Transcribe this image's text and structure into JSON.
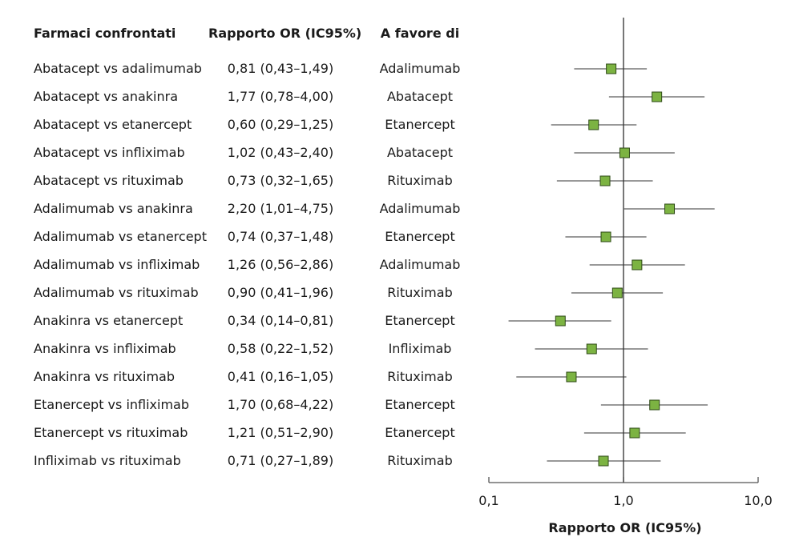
{
  "chart_data": {
    "type": "forest",
    "headers": {
      "comparison": "Farmaci confrontati",
      "ratio": "Rapporto OR (IC95%)",
      "favors": "A favore di"
    },
    "xlabel": "Rapporto OR (IC95%)",
    "xscale": "log",
    "xlim": [
      0.1,
      10.0
    ],
    "xticks": [
      {
        "value": 0.1,
        "label": "0,1"
      },
      {
        "value": 1.0,
        "label": "1,0"
      },
      {
        "value": 10.0,
        "label": "10,0"
      }
    ],
    "reference_line": 1.0,
    "marker_color": "#7cb342",
    "rows": [
      {
        "comparison": "Abatacept vs adalimumab",
        "or_text": "0,81 (0,43–1,49)",
        "favors": "Adalimumab",
        "or": 0.81,
        "low": 0.43,
        "high": 1.49
      },
      {
        "comparison": "Abatacept vs anakinra",
        "or_text": "1,77 (0,78–4,00)",
        "favors": "Abatacept",
        "or": 1.77,
        "low": 0.78,
        "high": 4.0
      },
      {
        "comparison": "Abatacept vs etanercept",
        "or_text": "0,60 (0,29–1,25)",
        "favors": "Etanercept",
        "or": 0.6,
        "low": 0.29,
        "high": 1.25
      },
      {
        "comparison": "Abatacept vs infliximab",
        "or_text": "1,02 (0,43–2,40)",
        "favors": "Abatacept",
        "or": 1.02,
        "low": 0.43,
        "high": 2.4
      },
      {
        "comparison": "Abatacept vs rituximab",
        "or_text": "0,73 (0,32–1,65)",
        "favors": "Rituximab",
        "or": 0.73,
        "low": 0.32,
        "high": 1.65
      },
      {
        "comparison": "Adalimumab vs anakinra",
        "or_text": "2,20 (1,01–4,75)",
        "favors": "Adalimumab",
        "or": 2.2,
        "low": 1.01,
        "high": 4.75
      },
      {
        "comparison": "Adalimumab vs etanercept",
        "or_text": "0,74 (0,37–1,48)",
        "favors": "Etanercept",
        "or": 0.74,
        "low": 0.37,
        "high": 1.48
      },
      {
        "comparison": "Adalimumab vs infliximab",
        "or_text": "1,26 (0,56–2,86)",
        "favors": "Adalimumab",
        "or": 1.26,
        "low": 0.56,
        "high": 2.86
      },
      {
        "comparison": "Adalimumab vs rituximab",
        "or_text": "0,90 (0,41–1,96)",
        "favors": "Rituximab",
        "or": 0.9,
        "low": 0.41,
        "high": 1.96
      },
      {
        "comparison": "Anakinra vs etanercept",
        "or_text": "0,34 (0,14–0,81)",
        "favors": "Etanercept",
        "or": 0.34,
        "low": 0.14,
        "high": 0.81
      },
      {
        "comparison": "Anakinra vs infliximab",
        "or_text": "0,58 (0,22–1,52)",
        "favors": "Infliximab",
        "or": 0.58,
        "low": 0.22,
        "high": 1.52
      },
      {
        "comparison": "Anakinra vs rituximab",
        "or_text": "0,41 (0,16–1,05)",
        "favors": "Rituximab",
        "or": 0.41,
        "low": 0.16,
        "high": 1.05
      },
      {
        "comparison": "Etanercept vs infliximab",
        "or_text": "1,70 (0,68–4,22)",
        "favors": "Etanercept",
        "or": 1.7,
        "low": 0.68,
        "high": 4.22
      },
      {
        "comparison": "Etanercept vs rituximab",
        "or_text": "1,21 (0,51–2,90)",
        "favors": "Etanercept",
        "or": 1.21,
        "low": 0.51,
        "high": 2.9
      },
      {
        "comparison": "Infliximab vs rituximab",
        "or_text": "0,71 (0,27–1,89)",
        "favors": "Rituximab",
        "or": 0.71,
        "low": 0.27,
        "high": 1.89
      }
    ]
  }
}
